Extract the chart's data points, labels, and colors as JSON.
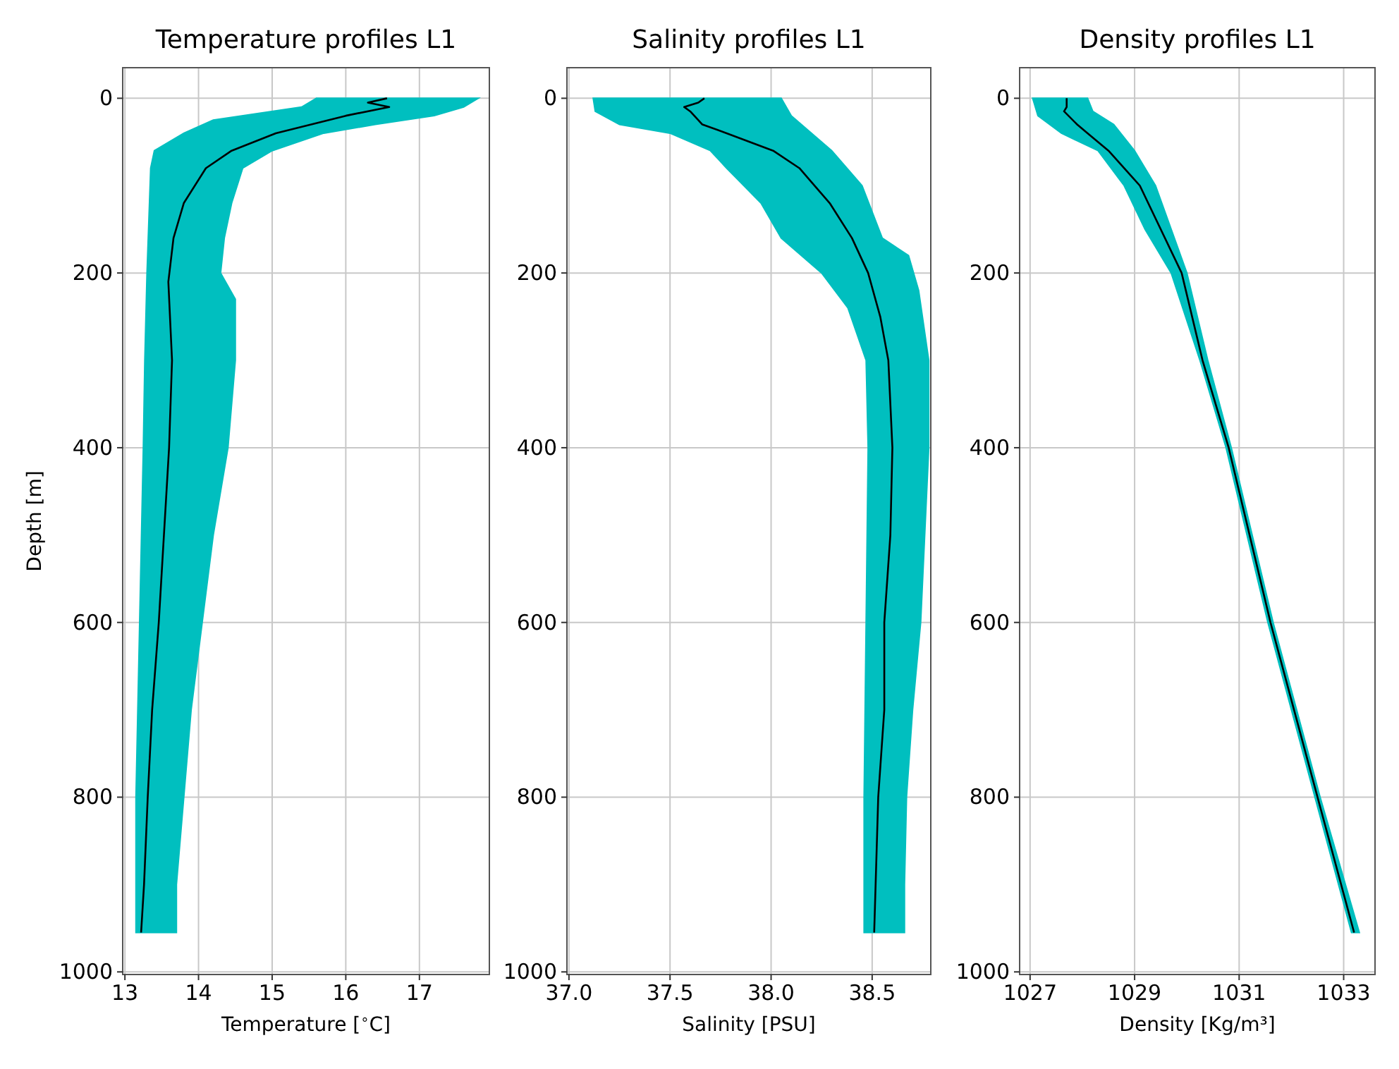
{
  "chart_data": [
    {
      "type": "line",
      "title": "Temperature profiles L1",
      "xlabel": "Temperature [$^{∘}$C]",
      "ylabel": "Depth [m]",
      "xlim": [
        12.97,
        17.95
      ],
      "xticks": [
        13,
        14,
        15,
        16,
        17
      ],
      "ylim": [
        1003,
        -35
      ],
      "yticks": [
        0,
        200,
        400,
        600,
        800,
        1000
      ],
      "grid": true,
      "series": [
        {
          "type": "area",
          "color": "#00bfbf",
          "x": [
            15.6,
            15.4,
            14.2,
            13.8,
            13.4,
            13.35,
            13.3,
            13.27,
            13.25,
            13.2,
            13.15,
            13.15,
            13.7,
            13.7,
            13.8,
            13.9,
            14.05,
            14.2,
            14.4,
            14.5,
            14.5,
            14.3,
            14.35,
            14.45,
            14.6,
            15.0,
            15.7,
            16.4,
            17.2,
            17.6,
            17.8
          ],
          "values": [
            0,
            10,
            25,
            40,
            60,
            80,
            200,
            300,
            400,
            600,
            800,
            955,
            955,
            900,
            800,
            700,
            600,
            500,
            400,
            300,
            230,
            200,
            160,
            120,
            80,
            60,
            40,
            30,
            20,
            10,
            0
          ]
        },
        {
          "color": "#000000",
          "x": [
            16.56,
            16.3,
            16.59,
            16.0,
            15.05,
            14.45,
            14.1,
            13.8,
            13.66,
            13.59,
            13.64,
            13.6,
            13.53,
            13.46,
            13.37,
            13.31,
            13.26,
            13.22
          ],
          "values": [
            0,
            5,
            10,
            20,
            40,
            60,
            80,
            120,
            160,
            210,
            300,
            400,
            500,
            600,
            700,
            800,
            900,
            955
          ]
        }
      ]
    },
    {
      "type": "line",
      "title": "Salinity profiles L1",
      "xlabel": "Salinity [PSU]",
      "xlim": [
        36.99,
        38.79
      ],
      "xticks": [
        {
          "value": 37,
          "label": "37.0"
        },
        37.5,
        {
          "value": 38,
          "label": "38.0"
        },
        38.5
      ],
      "ylim": [
        1003,
        -35
      ],
      "yticks": [
        0,
        200,
        400,
        600,
        800,
        1000
      ],
      "grid": true,
      "series": [
        {
          "type": "area",
          "color": "#00bfbf",
          "x": [
            37.12,
            37.13,
            37.25,
            37.5,
            37.7,
            37.78,
            37.95,
            38.05,
            38.25,
            38.38,
            38.44,
            38.47,
            38.48,
            38.47,
            38.46,
            38.46,
            38.66,
            38.66,
            38.67,
            38.7,
            38.74,
            38.76,
            38.78,
            38.78,
            38.73,
            38.68,
            38.55,
            38.45,
            38.3,
            38.1,
            38.05
          ],
          "values": [
            0,
            15,
            30,
            40,
            60,
            80,
            120,
            160,
            200,
            240,
            280,
            300,
            400,
            600,
            800,
            955,
            955,
            900,
            800,
            700,
            600,
            500,
            400,
            300,
            220,
            180,
            160,
            100,
            60,
            20,
            0
          ]
        },
        {
          "color": "#000000",
          "x": [
            37.67,
            37.64,
            37.57,
            37.6,
            37.66,
            37.78,
            38.01,
            38.14,
            38.29,
            38.4,
            38.48,
            38.54,
            38.58,
            38.6,
            38.59,
            38.56,
            38.56,
            38.53,
            38.51
          ],
          "values": [
            0,
            5,
            10,
            15,
            30,
            40,
            60,
            80,
            120,
            160,
            200,
            250,
            300,
            400,
            500,
            600,
            700,
            800,
            955
          ]
        }
      ]
    },
    {
      "type": "line",
      "title": "Density profiles L1",
      "xlabel": "Density [Kg/m³]",
      "xlim": [
        1026.8,
        1033.6
      ],
      "xticks": [
        1027,
        1029,
        1031,
        1033
      ],
      "ylim": [
        1003,
        -35
      ],
      "yticks": [
        0,
        200,
        400,
        600,
        800,
        1000
      ],
      "grid": true,
      "series": [
        {
          "type": "area",
          "color": "#00bfbf",
          "x": [
            1027.05,
            1027.15,
            1027.6,
            1028.3,
            1028.8,
            1029.2,
            1029.7,
            1030.25,
            1030.75,
            1031.55,
            1032.45,
            1033.15,
            1033.3,
            1032.55,
            1031.65,
            1030.85,
            1030.4,
            1030.0,
            1029.7,
            1029.4,
            1029.0,
            1028.6,
            1028.2,
            1028.1
          ],
          "values": [
            0,
            20,
            40,
            60,
            100,
            150,
            200,
            300,
            400,
            600,
            800,
            955,
            955,
            800,
            600,
            400,
            300,
            200,
            150,
            100,
            60,
            30,
            15,
            0
          ]
        },
        {
          "color": "#000000",
          "x": [
            1027.7,
            1027.7,
            1027.65,
            1027.9,
            1028.1,
            1028.5,
            1029.1,
            1029.9,
            1030.3,
            1030.8,
            1031.6,
            1032.5,
            1033.2
          ],
          "values": [
            0,
            10,
            15,
            30,
            40,
            60,
            100,
            200,
            300,
            400,
            600,
            800,
            955
          ]
        }
      ]
    }
  ]
}
